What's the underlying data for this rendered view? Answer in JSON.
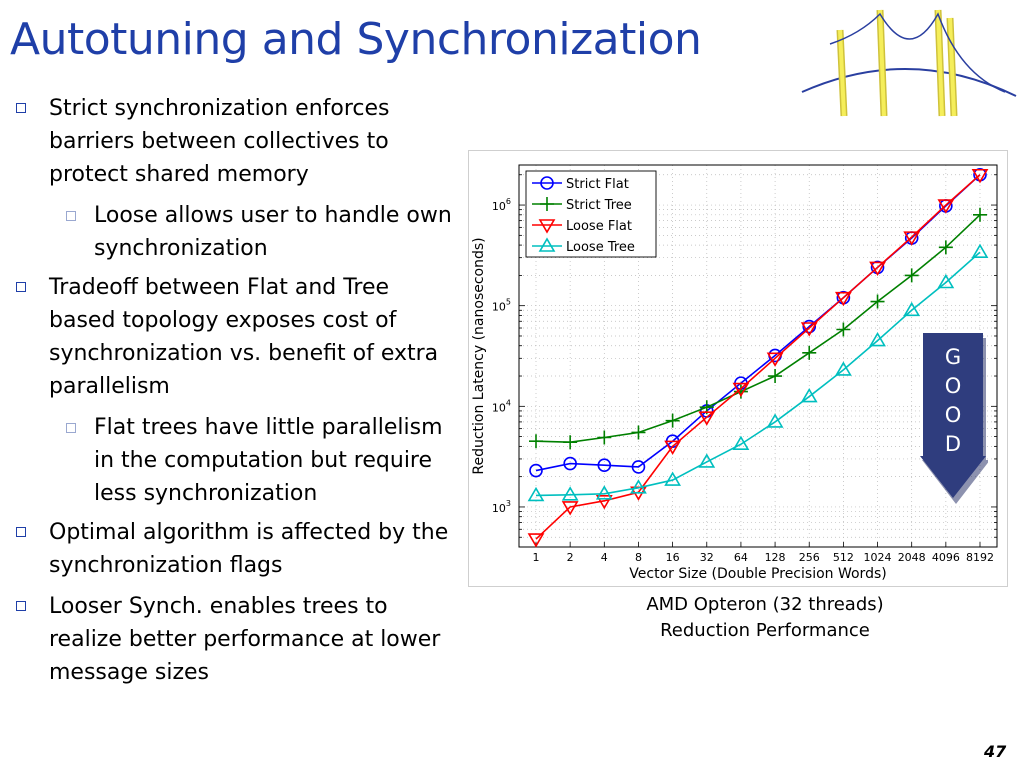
{
  "slide": {
    "title": "Autotuning and Synchronization",
    "page_number": "47",
    "caption_line1": "AMD Opteron (32 threads)",
    "caption_line2": "Reduction Performance",
    "good_letters": [
      "G",
      "O",
      "O",
      "D"
    ],
    "accent_color": "#1f3fa8",
    "arrow_color": "#2f3d7e"
  },
  "bullets": [
    {
      "level": 1,
      "text": "Strict synchronization enforces barriers between collectives to protect shared memory"
    },
    {
      "level": 2,
      "text": "Loose allows user to handle own synchronization"
    },
    {
      "level": 1,
      "text": "Tradeoff between Flat and Tree based topology exposes cost of synchronization vs. benefit of extra parallelism"
    },
    {
      "level": 2,
      "text": "Flat trees have little parallelism in the computation but require less synchronization"
    },
    {
      "level": 1,
      "text": "Optimal algorithm is affected by the synchronization flags"
    },
    {
      "level": 1,
      "text": " Looser Synch. enables trees to realize better performance at lower message sizes"
    }
  ],
  "chart_data": {
    "type": "line",
    "xlabel": "Vector Size (Double Precision Words)",
    "ylabel": "Reduction Latency (nanoseconds)",
    "x": [
      "1",
      "2",
      "4",
      "8",
      "16",
      "32",
      "64",
      "128",
      "256",
      "512",
      "1024",
      "2048",
      "4096",
      "8192"
    ],
    "y_scale": "log",
    "ylim": [
      400,
      2500000
    ],
    "ytick_labels": [
      "10^3",
      "10^4",
      "10^5",
      "10^6"
    ],
    "grid": true,
    "legend_position": "top-left",
    "series": [
      {
        "name": "Strict Flat",
        "color": "#0000ff",
        "marker": "circle",
        "values": [
          2300,
          2700,
          2600,
          2500,
          4500,
          9000,
          17000,
          32000,
          62000,
          120000,
          240000,
          470000,
          980000,
          2000000
        ]
      },
      {
        "name": "Strict Tree",
        "color": "#008000",
        "marker": "plus",
        "values": [
          4500,
          4400,
          4900,
          5500,
          7200,
          9800,
          14000,
          20000,
          34000,
          58000,
          110000,
          200000,
          380000,
          800000
        ]
      },
      {
        "name": "Loose Flat",
        "color": "#ff0000",
        "marker": "triangle-down",
        "values": [
          480,
          1000,
          1150,
          1400,
          4000,
          7800,
          15000,
          30000,
          60000,
          120000,
          240000,
          480000,
          1000000,
          2000000
        ]
      },
      {
        "name": "Loose Tree",
        "color": "#00bfbf",
        "marker": "triangle-up",
        "values": [
          1300,
          1320,
          1350,
          1550,
          1850,
          2800,
          4200,
          7000,
          12500,
          23000,
          45000,
          90000,
          170000,
          340000
        ]
      }
    ]
  }
}
